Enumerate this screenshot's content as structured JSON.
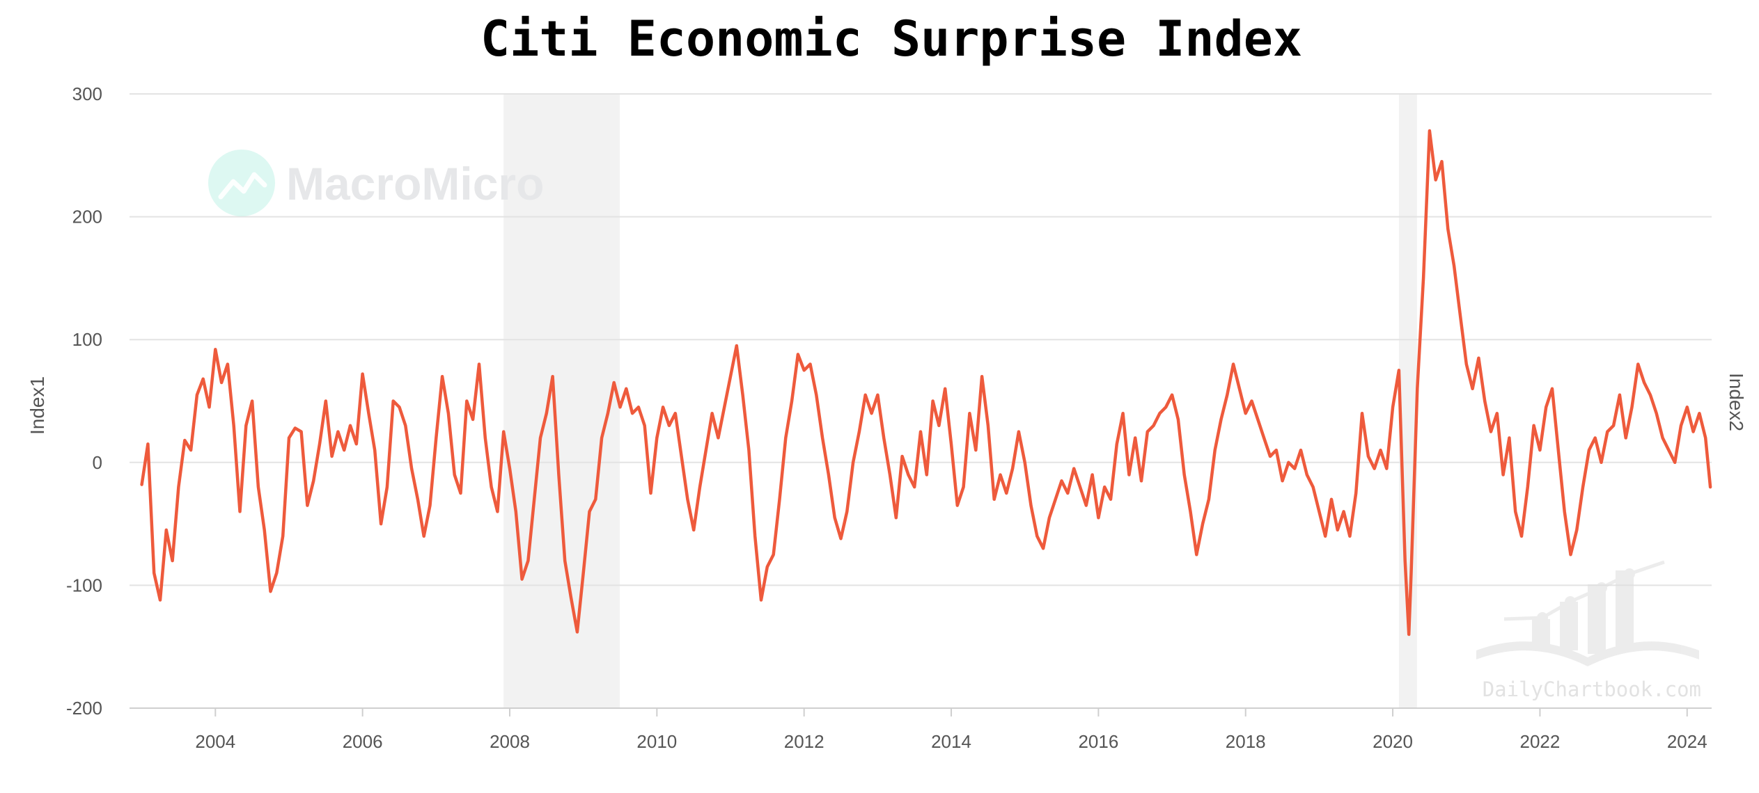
{
  "chart_data": {
    "type": "line",
    "title": "Citi Economic Surprise Index",
    "ylabel": "Index1",
    "ylabel_right": "Index2",
    "ylim": [
      -200,
      300
    ],
    "yticks": [
      300,
      200,
      100,
      0,
      -100,
      -200
    ],
    "xlim": [
      "2002-11-01",
      "2024-05-01"
    ],
    "xticks": [
      "2004",
      "2006",
      "2008",
      "2010",
      "2012",
      "2014",
      "2016",
      "2018",
      "2020",
      "2022",
      "2024"
    ],
    "grid": true,
    "recessions": [
      {
        "start": "2007-12-01",
        "end": "2009-06-30"
      },
      {
        "start": "2020-02-01",
        "end": "2020-04-30"
      }
    ],
    "series": [
      {
        "color": "#ee5a3c",
        "points": [
          [
            "2003-01",
            -18
          ],
          [
            "2003-02",
            15
          ],
          [
            "2003-03",
            -90
          ],
          [
            "2003-04",
            -112
          ],
          [
            "2003-05",
            -55
          ],
          [
            "2003-06",
            -80
          ],
          [
            "2003-07",
            -20
          ],
          [
            "2003-08",
            18
          ],
          [
            "2003-09",
            10
          ],
          [
            "2003-10",
            55
          ],
          [
            "2003-11",
            68
          ],
          [
            "2003-12",
            45
          ],
          [
            "2004-01",
            92
          ],
          [
            "2004-02",
            65
          ],
          [
            "2004-03",
            80
          ],
          [
            "2004-04",
            30
          ],
          [
            "2004-05",
            -40
          ],
          [
            "2004-06",
            30
          ],
          [
            "2004-07",
            50
          ],
          [
            "2004-08",
            -20
          ],
          [
            "2004-09",
            -55
          ],
          [
            "2004-10",
            -105
          ],
          [
            "2004-11",
            -90
          ],
          [
            "2004-12",
            -60
          ],
          [
            "2005-01",
            20
          ],
          [
            "2005-02",
            28
          ],
          [
            "2005-03",
            25
          ],
          [
            "2005-04",
            -35
          ],
          [
            "2005-05",
            -15
          ],
          [
            "2005-06",
            15
          ],
          [
            "2005-07",
            50
          ],
          [
            "2005-08",
            5
          ],
          [
            "2005-09",
            25
          ],
          [
            "2005-10",
            10
          ],
          [
            "2005-11",
            30
          ],
          [
            "2005-12",
            15
          ],
          [
            "2006-01",
            72
          ],
          [
            "2006-02",
            40
          ],
          [
            "2006-03",
            10
          ],
          [
            "2006-04",
            -50
          ],
          [
            "2006-05",
            -20
          ],
          [
            "2006-06",
            50
          ],
          [
            "2006-07",
            45
          ],
          [
            "2006-08",
            30
          ],
          [
            "2006-09",
            -5
          ],
          [
            "2006-10",
            -30
          ],
          [
            "2006-11",
            -60
          ],
          [
            "2006-12",
            -35
          ],
          [
            "2007-01",
            20
          ],
          [
            "2007-02",
            70
          ],
          [
            "2007-03",
            40
          ],
          [
            "2007-04",
            -10
          ],
          [
            "2007-05",
            -25
          ],
          [
            "2007-06",
            50
          ],
          [
            "2007-07",
            35
          ],
          [
            "2007-08",
            80
          ],
          [
            "2007-09",
            20
          ],
          [
            "2007-10",
            -20
          ],
          [
            "2007-11",
            -40
          ],
          [
            "2007-12",
            25
          ],
          [
            "2008-01",
            -5
          ],
          [
            "2008-02",
            -40
          ],
          [
            "2008-03",
            -95
          ],
          [
            "2008-04",
            -80
          ],
          [
            "2008-05",
            -30
          ],
          [
            "2008-06",
            20
          ],
          [
            "2008-07",
            40
          ],
          [
            "2008-08",
            70
          ],
          [
            "2008-09",
            -10
          ],
          [
            "2008-10",
            -80
          ],
          [
            "2008-11",
            -110
          ],
          [
            "2008-12",
            -138
          ],
          [
            "2009-01",
            -90
          ],
          [
            "2009-02",
            -40
          ],
          [
            "2009-03",
            -30
          ],
          [
            "2009-04",
            20
          ],
          [
            "2009-05",
            40
          ],
          [
            "2009-06",
            65
          ],
          [
            "2009-07",
            45
          ],
          [
            "2009-08",
            60
          ],
          [
            "2009-09",
            40
          ],
          [
            "2009-10",
            45
          ],
          [
            "2009-11",
            30
          ],
          [
            "2009-12",
            -25
          ],
          [
            "2010-01",
            20
          ],
          [
            "2010-02",
            45
          ],
          [
            "2010-03",
            30
          ],
          [
            "2010-04",
            40
          ],
          [
            "2010-05",
            5
          ],
          [
            "2010-06",
            -30
          ],
          [
            "2010-07",
            -55
          ],
          [
            "2010-08",
            -20
          ],
          [
            "2010-09",
            10
          ],
          [
            "2010-10",
            40
          ],
          [
            "2010-11",
            20
          ],
          [
            "2010-12",
            45
          ],
          [
            "2011-01",
            70
          ],
          [
            "2011-02",
            95
          ],
          [
            "2011-03",
            55
          ],
          [
            "2011-04",
            10
          ],
          [
            "2011-05",
            -60
          ],
          [
            "2011-06",
            -112
          ],
          [
            "2011-07",
            -85
          ],
          [
            "2011-08",
            -75
          ],
          [
            "2011-09",
            -30
          ],
          [
            "2011-10",
            20
          ],
          [
            "2011-11",
            50
          ],
          [
            "2011-12",
            88
          ],
          [
            "2012-01",
            75
          ],
          [
            "2012-02",
            80
          ],
          [
            "2012-03",
            55
          ],
          [
            "2012-04",
            20
          ],
          [
            "2012-05",
            -10
          ],
          [
            "2012-06",
            -45
          ],
          [
            "2012-07",
            -62
          ],
          [
            "2012-08",
            -40
          ],
          [
            "2012-09",
            0
          ],
          [
            "2012-10",
            25
          ],
          [
            "2012-11",
            55
          ],
          [
            "2012-12",
            40
          ],
          [
            "2013-01",
            55
          ],
          [
            "2013-02",
            20
          ],
          [
            "2013-03",
            -10
          ],
          [
            "2013-04",
            -45
          ],
          [
            "2013-05",
            5
          ],
          [
            "2013-06",
            -10
          ],
          [
            "2013-07",
            -20
          ],
          [
            "2013-08",
            25
          ],
          [
            "2013-09",
            -10
          ],
          [
            "2013-10",
            50
          ],
          [
            "2013-11",
            30
          ],
          [
            "2013-12",
            60
          ],
          [
            "2014-01",
            15
          ],
          [
            "2014-02",
            -35
          ],
          [
            "2014-03",
            -20
          ],
          [
            "2014-04",
            40
          ],
          [
            "2014-05",
            10
          ],
          [
            "2014-06",
            70
          ],
          [
            "2014-07",
            30
          ],
          [
            "2014-08",
            -30
          ],
          [
            "2014-09",
            -10
          ],
          [
            "2014-10",
            -25
          ],
          [
            "2014-11",
            -5
          ],
          [
            "2014-12",
            25
          ],
          [
            "2015-01",
            0
          ],
          [
            "2015-02",
            -35
          ],
          [
            "2015-03",
            -60
          ],
          [
            "2015-04",
            -70
          ],
          [
            "2015-05",
            -45
          ],
          [
            "2015-06",
            -30
          ],
          [
            "2015-07",
            -15
          ],
          [
            "2015-08",
            -25
          ],
          [
            "2015-09",
            -5
          ],
          [
            "2015-10",
            -20
          ],
          [
            "2015-11",
            -35
          ],
          [
            "2015-12",
            -10
          ],
          [
            "2016-01",
            -45
          ],
          [
            "2016-02",
            -20
          ],
          [
            "2016-03",
            -30
          ],
          [
            "2016-04",
            15
          ],
          [
            "2016-05",
            40
          ],
          [
            "2016-06",
            -10
          ],
          [
            "2016-07",
            20
          ],
          [
            "2016-08",
            -15
          ],
          [
            "2016-09",
            25
          ],
          [
            "2016-10",
            30
          ],
          [
            "2016-11",
            40
          ],
          [
            "2016-12",
            45
          ],
          [
            "2017-01",
            55
          ],
          [
            "2017-02",
            35
          ],
          [
            "2017-03",
            -10
          ],
          [
            "2017-04",
            -40
          ],
          [
            "2017-05",
            -75
          ],
          [
            "2017-06",
            -50
          ],
          [
            "2017-07",
            -30
          ],
          [
            "2017-08",
            10
          ],
          [
            "2017-09",
            35
          ],
          [
            "2017-10",
            55
          ],
          [
            "2017-11",
            80
          ],
          [
            "2017-12",
            60
          ],
          [
            "2018-01",
            40
          ],
          [
            "2018-02",
            50
          ],
          [
            "2018-03",
            35
          ],
          [
            "2018-04",
            20
          ],
          [
            "2018-05",
            5
          ],
          [
            "2018-06",
            10
          ],
          [
            "2018-07",
            -15
          ],
          [
            "2018-08",
            0
          ],
          [
            "2018-09",
            -5
          ],
          [
            "2018-10",
            10
          ],
          [
            "2018-11",
            -10
          ],
          [
            "2018-12",
            -20
          ],
          [
            "2019-01",
            -40
          ],
          [
            "2019-02",
            -60
          ],
          [
            "2019-03",
            -30
          ],
          [
            "2019-04",
            -55
          ],
          [
            "2019-05",
            -40
          ],
          [
            "2019-06",
            -60
          ],
          [
            "2019-07",
            -25
          ],
          [
            "2019-08",
            40
          ],
          [
            "2019-09",
            5
          ],
          [
            "2019-10",
            -5
          ],
          [
            "2019-11",
            10
          ],
          [
            "2019-12",
            -5
          ],
          [
            "2020-01",
            45
          ],
          [
            "2020-02",
            75
          ],
          [
            "2020-03",
            -80
          ],
          [
            "2020-03-20",
            -140
          ],
          [
            "2020-04",
            -90
          ],
          [
            "2020-05",
            60
          ],
          [
            "2020-06",
            150
          ],
          [
            "2020-07",
            270
          ],
          [
            "2020-08",
            230
          ],
          [
            "2020-09",
            245
          ],
          [
            "2020-10",
            190
          ],
          [
            "2020-11",
            160
          ],
          [
            "2020-12",
            120
          ],
          [
            "2021-01",
            80
          ],
          [
            "2021-02",
            60
          ],
          [
            "2021-03",
            85
          ],
          [
            "2021-04",
            50
          ],
          [
            "2021-05",
            25
          ],
          [
            "2021-06",
            40
          ],
          [
            "2021-07",
            -10
          ],
          [
            "2021-08",
            20
          ],
          [
            "2021-09",
            -40
          ],
          [
            "2021-10",
            -60
          ],
          [
            "2021-11",
            -20
          ],
          [
            "2021-12",
            30
          ],
          [
            "2022-01",
            10
          ],
          [
            "2022-02",
            45
          ],
          [
            "2022-03",
            60
          ],
          [
            "2022-04",
            10
          ],
          [
            "2022-05",
            -40
          ],
          [
            "2022-06",
            -75
          ],
          [
            "2022-07",
            -55
          ],
          [
            "2022-08",
            -20
          ],
          [
            "2022-09",
            10
          ],
          [
            "2022-10",
            20
          ],
          [
            "2022-11",
            0
          ],
          [
            "2022-12",
            25
          ],
          [
            "2023-01",
            30
          ],
          [
            "2023-02",
            55
          ],
          [
            "2023-03",
            20
          ],
          [
            "2023-04",
            45
          ],
          [
            "2023-05",
            80
          ],
          [
            "2023-06",
            65
          ],
          [
            "2023-07",
            55
          ],
          [
            "2023-08",
            40
          ],
          [
            "2023-09",
            20
          ],
          [
            "2023-10",
            10
          ],
          [
            "2023-11",
            0
          ],
          [
            "2023-12",
            30
          ],
          [
            "2024-01",
            45
          ],
          [
            "2024-02",
            25
          ],
          [
            "2024-03",
            40
          ],
          [
            "2024-04",
            20
          ],
          [
            "2024-04-25",
            -20
          ]
        ]
      }
    ]
  },
  "watermarks": {
    "brand": "MacroMicro",
    "site": "DailyChartbook.com",
    "brand_color": "#62dfc3"
  }
}
